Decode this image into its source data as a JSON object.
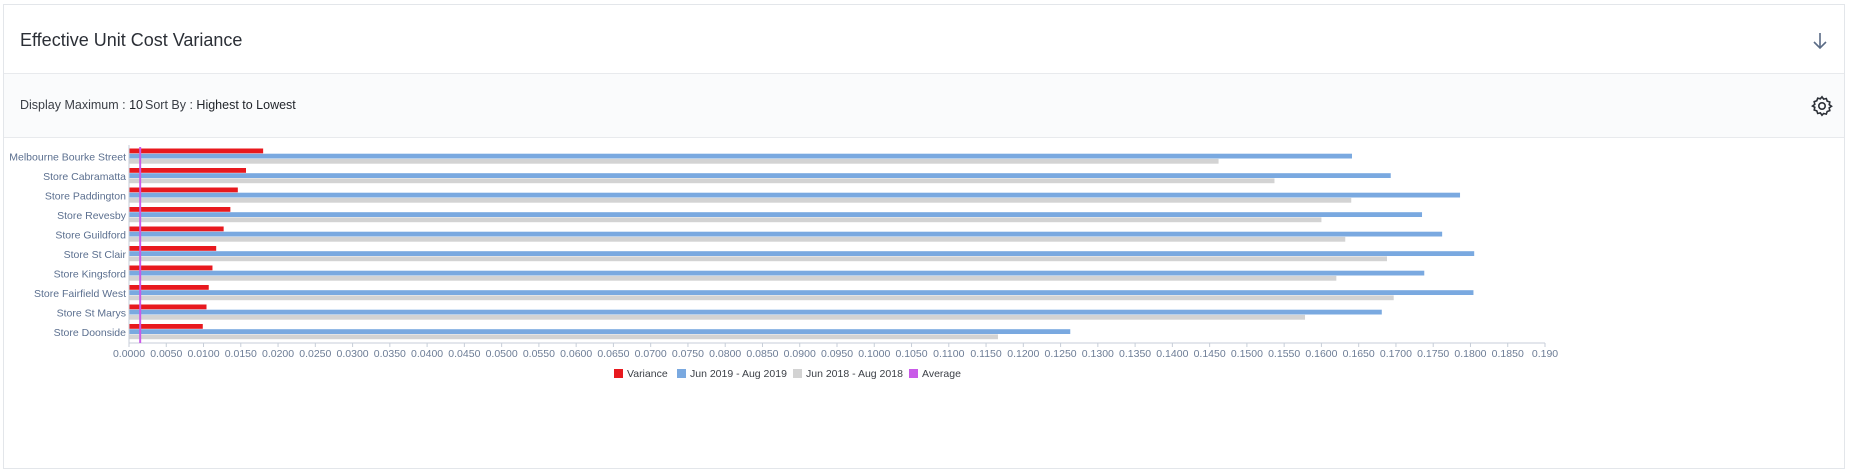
{
  "header": {
    "title": "Effective Unit Cost Variance"
  },
  "toolbar": {
    "display_max_label": "Display Maximum :",
    "display_max_value": "10",
    "sort_label": "Sort By :",
    "sort_value": "Highest to Lowest"
  },
  "icons": {
    "download": "arrow-down-icon",
    "settings": "gear-icon"
  },
  "colors": {
    "variance": "#e8191e",
    "current": "#7aa9e0",
    "previous": "#d3d3d3",
    "average": "#c95ae8"
  },
  "chart_data": {
    "type": "bar",
    "orientation": "horizontal",
    "categories": [
      "Melbourne Bourke Street",
      "Store Cabramatta",
      "Store Paddington",
      "Store Revesby",
      "Store Guildford",
      "Store St Clair",
      "Store Kingsford",
      "Store Fairfield West",
      "Store St Marys",
      "Store Doonside"
    ],
    "series": [
      {
        "name": "Variance",
        "values": [
          0.018,
          0.0157,
          0.0146,
          0.0136,
          0.0127,
          0.0117,
          0.0112,
          0.0107,
          0.0104,
          0.0099
        ]
      },
      {
        "name": "Jun 2019 - Aug 2019",
        "values": [
          0.1641,
          0.1693,
          0.1786,
          0.1735,
          0.1762,
          0.1805,
          0.1738,
          0.1804,
          0.1681,
          0.1263
        ]
      },
      {
        "name": "Jun 2018 - Aug 2018",
        "values": [
          0.1462,
          0.1537,
          0.164,
          0.16,
          0.1632,
          0.1688,
          0.162,
          0.1697,
          0.1578,
          0.1166
        ]
      }
    ],
    "average": {
      "name": "Average",
      "value": 0.0015
    },
    "xlim": [
      0,
      0.19
    ],
    "xtick_step": 0.005,
    "tick_decimals": 4,
    "legend": [
      "Variance",
      "Jun 2019 - Aug 2019",
      "Jun 2018 - Aug 2018",
      "Average"
    ],
    "legend_position": "bottom",
    "grid": false
  }
}
